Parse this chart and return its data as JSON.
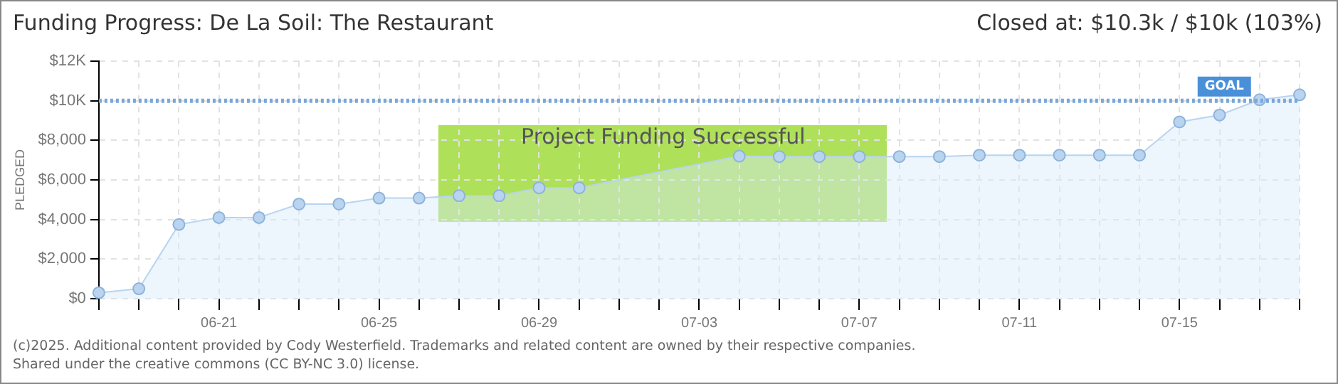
{
  "chart_data": {
    "type": "area",
    "title": "Funding Progress: De La Soil: The Restaurant",
    "subtitle": "Closed at:  $10.3k / $10k (103%)",
    "ylabel": "PLEDGED",
    "categories": [
      null,
      null,
      null,
      "06-21",
      null,
      null,
      null,
      "06-25",
      null,
      null,
      null,
      "06-29",
      null,
      null,
      null,
      "07-03",
      null,
      null,
      null,
      "07-07",
      null,
      null,
      null,
      "07-11",
      null,
      null,
      null,
      "07-15",
      null,
      null,
      null
    ],
    "series": [
      {
        "color": "#b8d4f0",
        "values": [
          300,
          500,
          3750,
          4100,
          4100,
          4780,
          4780,
          5080,
          5080,
          5200,
          5200,
          5600,
          5600,
          null,
          null,
          null,
          7200,
          7180,
          7180,
          7180,
          7180,
          7180,
          7250,
          7250,
          7250,
          7250,
          7250,
          8930,
          9280,
          10050,
          10300
        ]
      }
    ],
    "ylim": [
      0,
      12000
    ],
    "yticks": [
      {
        "value": 0,
        "label": "$0"
      },
      {
        "value": 2000,
        "label": "$2,000"
      },
      {
        "value": 4000,
        "label": "$4,000"
      },
      {
        "value": 6000,
        "label": "$6,000"
      },
      {
        "value": 8000,
        "label": "$8,000"
      },
      {
        "value": 10000,
        "label": "$10K"
      },
      {
        "value": 12000,
        "label": "$12K"
      }
    ],
    "ref_lines": [
      {
        "axis": "y",
        "value": 10000,
        "label": "GOAL",
        "color": "#7aa7d9",
        "line_style": "dotted"
      }
    ],
    "annotations": [
      "Project Funding Successful",
      "(c)2025. Additional content provided by Cody Westerfield. Trademarks and related content are owned by their respective companies.",
      "Shared under the creative commons (CC BY-NC 3.0) license."
    ],
    "grid": true,
    "legend": false,
    "marker": "circle",
    "line_style": "solid"
  }
}
